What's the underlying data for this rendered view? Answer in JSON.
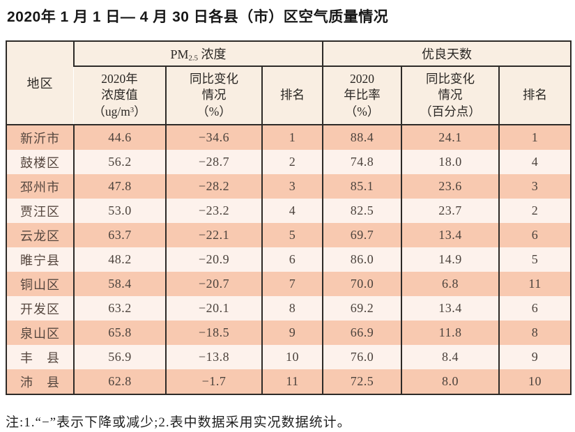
{
  "title": "2020年 1 月 1 日— 4 月 30 日各县（市）区空气质量情况",
  "table": {
    "header": {
      "region": "地区",
      "pm25_group": {
        "prefix": "PM",
        "sub": "2.5",
        "suffix": " 浓度"
      },
      "good_days_group": "优良天数",
      "pm_value": {
        "line1": "2020年",
        "line2": "浓度值",
        "line3_pre": "（ug/m",
        "line3_sup": "3",
        "line3_post": "）"
      },
      "pm_change": {
        "line1": "同比变化",
        "line2": "情况",
        "line3": "（%）"
      },
      "pm_rank": "排名",
      "good_rate": {
        "line1": "2020",
        "line2": "年比率",
        "line3": "（%）"
      },
      "good_change": {
        "line1": "同比变化",
        "line2": "情况",
        "line3": "（百分点）"
      },
      "good_rank": "排名"
    },
    "rows": [
      {
        "region": "新沂市",
        "pm": "44.6",
        "pm_change": "−34.6",
        "pm_rank": "1",
        "good": "88.4",
        "good_change": "24.1",
        "good_rank": "1"
      },
      {
        "region": "鼓楼区",
        "pm": "56.2",
        "pm_change": "−28.7",
        "pm_rank": "2",
        "good": "74.8",
        "good_change": "18.0",
        "good_rank": "4"
      },
      {
        "region": "邳州市",
        "pm": "47.8",
        "pm_change": "−28.2",
        "pm_rank": "3",
        "good": "85.1",
        "good_change": "23.6",
        "good_rank": "3"
      },
      {
        "region": "贾汪区",
        "pm": "53.0",
        "pm_change": "−23.2",
        "pm_rank": "4",
        "good": "82.5",
        "good_change": "23.7",
        "good_rank": "2"
      },
      {
        "region": "云龙区",
        "pm": "63.7",
        "pm_change": "−22.1",
        "pm_rank": "5",
        "good": "69.7",
        "good_change": "13.4",
        "good_rank": "6"
      },
      {
        "region": "睢宁县",
        "pm": "48.2",
        "pm_change": "−20.9",
        "pm_rank": "6",
        "good": "86.0",
        "good_change": "14.9",
        "good_rank": "5"
      },
      {
        "region": "铜山区",
        "pm": "58.4",
        "pm_change": "−20.7",
        "pm_rank": "7",
        "good": "70.0",
        "good_change": "6.8",
        "good_rank": "11"
      },
      {
        "region": "开发区",
        "pm": "63.2",
        "pm_change": "−20.1",
        "pm_rank": "8",
        "good": "69.2",
        "good_change": "13.4",
        "good_rank": "6"
      },
      {
        "region": "泉山区",
        "pm": "65.8",
        "pm_change": "−18.5",
        "pm_rank": "9",
        "good": "66.9",
        "good_change": "11.8",
        "good_rank": "8"
      },
      {
        "region": "丰　县",
        "pm": "56.9",
        "pm_change": "−13.8",
        "pm_rank": "10",
        "good": "76.0",
        "good_change": "8.4",
        "good_rank": "9"
      },
      {
        "region": "沛　县",
        "pm": "62.8",
        "pm_change": "−1.7",
        "pm_rank": "11",
        "good": "72.5",
        "good_change": "8.0",
        "good_rank": "10"
      }
    ]
  },
  "footnote": "注:1.“−”表示下降或减少;2.表中数据采用实况数据统计。"
}
